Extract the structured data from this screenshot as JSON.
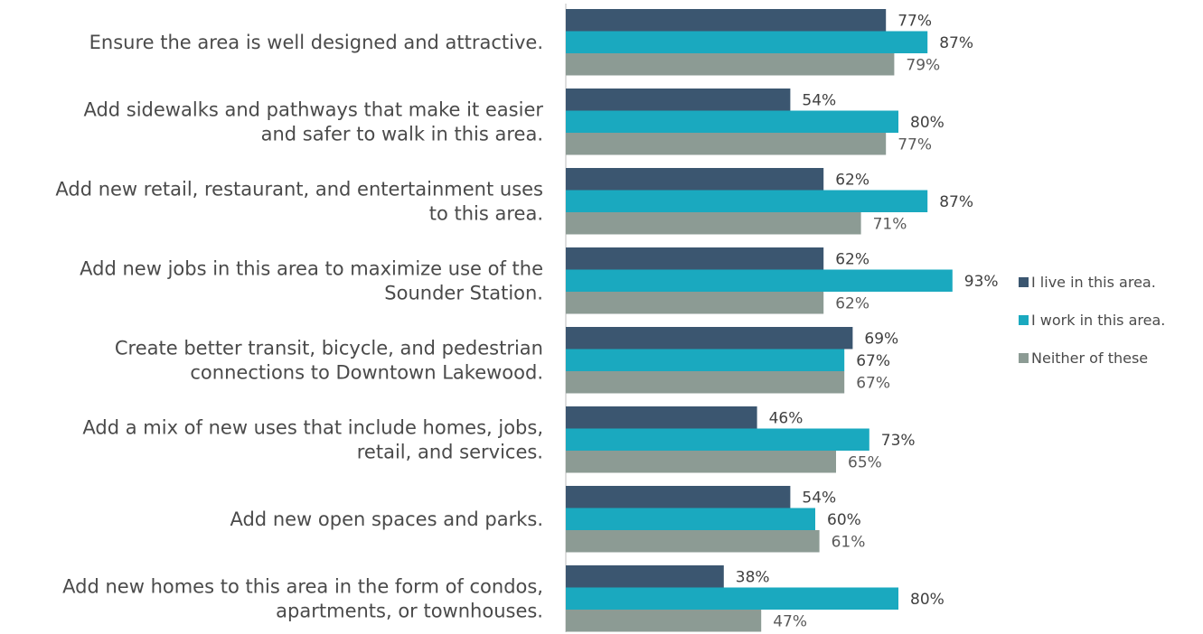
{
  "chart_data": {
    "type": "bar",
    "orientation": "horizontal",
    "categories": [
      [
        "Ensure the area is well designed and attractive."
      ],
      [
        "Add sidewalks and pathways that make it easier",
        "and safer to walk in this area."
      ],
      [
        "Add new retail, restaurant, and entertainment uses",
        "to this area."
      ],
      [
        "Add new jobs in this area to maximize use of the",
        "Sounder Station."
      ],
      [
        "Create better transit, bicycle, and pedestrian",
        "connections to Downtown Lakewood."
      ],
      [
        "Add a mix of new uses that include homes, jobs,",
        "retail, and services."
      ],
      [
        "Add new open spaces and parks."
      ],
      [
        "Add new homes to this area in the form of condos,",
        "apartments, or townhouses."
      ]
    ],
    "series": [
      {
        "name": "I live in this area.",
        "color": "#3b5670",
        "labelColor": "#404040",
        "values": [
          77,
          54,
          62,
          62,
          69,
          46,
          54,
          38
        ]
      },
      {
        "name": "I work in this area.",
        "color": "#1aa9bf",
        "labelColor": "#404040",
        "values": [
          87,
          80,
          87,
          93,
          67,
          73,
          60,
          80
        ]
      },
      {
        "name": "Neither of these",
        "color": "#8c9b94",
        "labelColor": "#5a5a5a",
        "values": [
          79,
          77,
          71,
          62,
          67,
          65,
          61,
          47
        ]
      }
    ],
    "value_suffix": "%",
    "xlim": [
      0,
      100
    ],
    "grid": false,
    "legend_position": "right",
    "title": "",
    "xlabel": "",
    "ylabel": ""
  }
}
